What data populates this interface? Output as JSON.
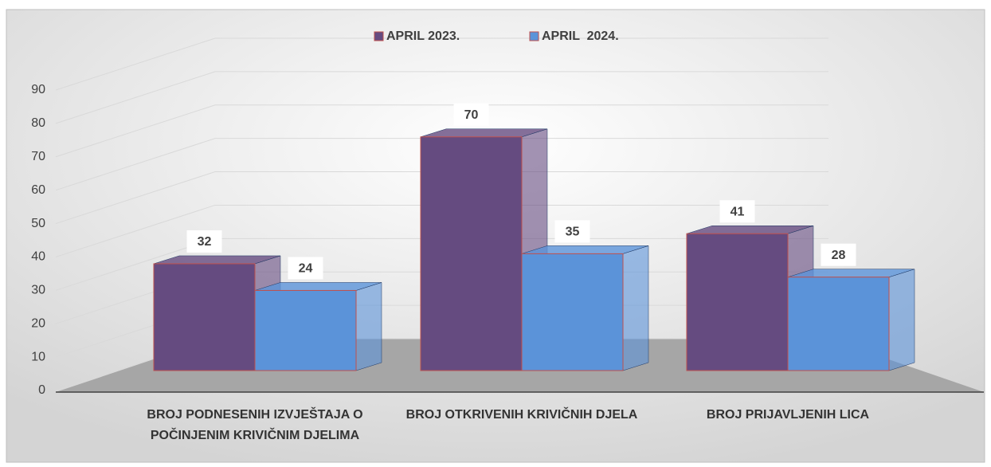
{
  "chart_data": {
    "type": "bar",
    "categories": [
      "BROJ PODNESENIH IZVJEŠTAJA O POČINJENIM KRIVIČNIM DJELIMA",
      "BROJ OTKRIVENIH KRIVIČNIH DJELA",
      "BROJ PRIJAVLJENIH LICA"
    ],
    "series": [
      {
        "name": "APRIL 2023.",
        "color": "#654b80",
        "values": [
          32,
          70,
          41
        ]
      },
      {
        "name": "APRIL  2024.",
        "color": "#5b93d9",
        "values": [
          24,
          35,
          28
        ]
      }
    ],
    "ylim": [
      0,
      90
    ],
    "yticks": [
      0,
      10,
      20,
      30,
      40,
      50,
      60,
      70,
      80,
      90
    ],
    "grid": true,
    "legend": "top"
  }
}
